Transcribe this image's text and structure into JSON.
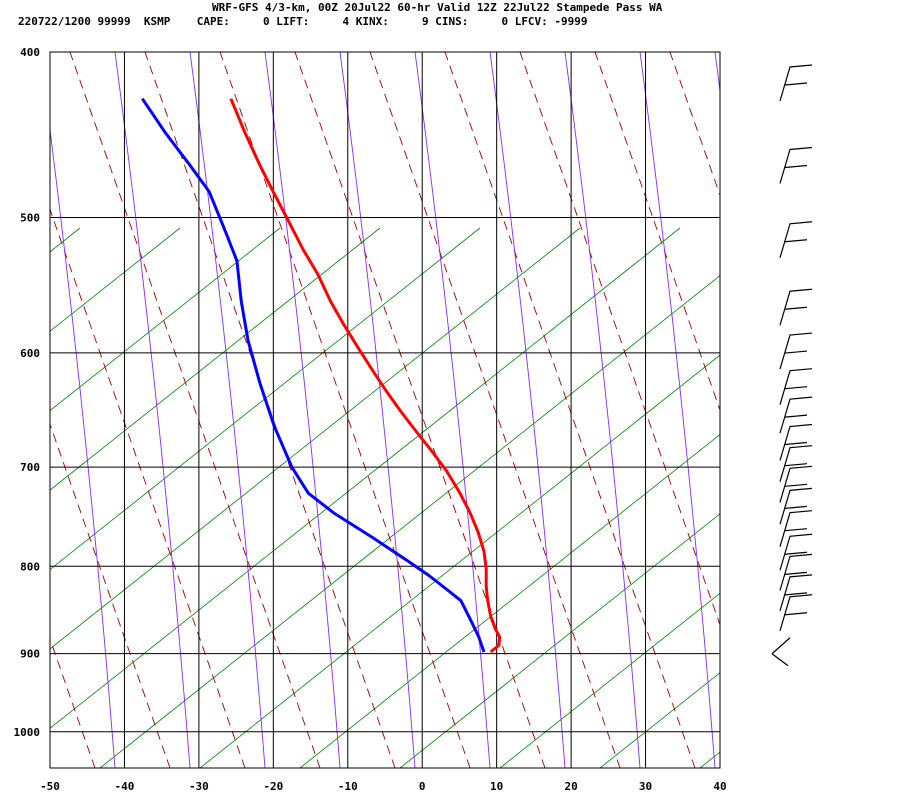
{
  "header": {
    "line1": "WRF-GFS 4/3-km, 00Z 20Jul22 60-hr Valid 12Z 22Jul22 Stampede Pass WA",
    "line2": "220722/1200 99999  KSMP    CAPE:     0 LIFT:     4 KINX:     9 CINS:     0 LFCV: -9999"
  },
  "chart_data": {
    "type": "line",
    "title": "",
    "xlabel": "",
    "ylabel": "",
    "x_ticks": [
      -50,
      -40,
      -30,
      -20,
      -10,
      0,
      10,
      20,
      30,
      40
    ],
    "x_tick_labels": [
      "-50",
      "-40",
      "-30",
      "-20",
      "-10",
      "0",
      "10",
      "20",
      "30",
      "40"
    ],
    "y_ticks": [
      400,
      500,
      600,
      700,
      800,
      900,
      1000
    ],
    "y_tick_labels": [
      "400",
      "500",
      "600",
      "700",
      "800",
      "900",
      "1000"
    ],
    "xlim": [
      -50,
      40
    ],
    "ylim": [
      400,
      1050
    ],
    "y_scale": "log-pressure",
    "grid": true,
    "series": [
      {
        "color": "#ff0000",
        "points": [
          [
            -25.7,
            426
          ],
          [
            -23.8,
            446
          ],
          [
            -21.8,
            466
          ],
          [
            -20.0,
            483
          ],
          [
            -18.0,
            502
          ],
          [
            -16.0,
            522
          ],
          [
            -14.0,
            540
          ],
          [
            -12.3,
            560
          ],
          [
            -10.5,
            578
          ],
          [
            -8.6,
            596
          ],
          [
            -6.7,
            614
          ],
          [
            -4.8,
            632
          ],
          [
            -2.8,
            650
          ],
          [
            -0.7,
            668
          ],
          [
            1.4,
            686
          ],
          [
            3.3,
            704
          ],
          [
            5.0,
            724
          ],
          [
            6.4,
            744
          ],
          [
            7.5,
            764
          ],
          [
            8.3,
            784
          ],
          [
            8.6,
            803
          ],
          [
            8.6,
            822
          ],
          [
            8.8,
            838
          ],
          [
            9.2,
            856
          ],
          [
            9.8,
            870
          ],
          [
            10.4,
            880
          ],
          [
            10.3,
            890
          ],
          [
            9.6,
            895
          ],
          [
            9.2,
            898
          ]
        ]
      },
      {
        "color": "#0000ff",
        "points": [
          [
            -37.6,
            426
          ],
          [
            -34.5,
            446
          ],
          [
            -31.2,
            466
          ],
          [
            -28.6,
            483
          ],
          [
            -26.4,
            510
          ],
          [
            -24.9,
            530
          ],
          [
            -24.3,
            560
          ],
          [
            -23.4,
            590
          ],
          [
            -21.8,
            625
          ],
          [
            -19.9,
            662
          ],
          [
            -17.5,
            700
          ],
          [
            -15.3,
            725
          ],
          [
            -11.8,
            745
          ],
          [
            -6.6,
            770
          ],
          [
            -1.8,
            795
          ],
          [
            0.9,
            810
          ],
          [
            3.4,
            826
          ],
          [
            5.2,
            838
          ],
          [
            6.5,
            860
          ],
          [
            7.6,
            880
          ],
          [
            8.3,
            898
          ]
        ]
      }
    ],
    "background_lines": {
      "dry_adiabat_color": "#990000",
      "moist_adiabat_color": "#8a2be2",
      "isotherm_skew_color": "#008000",
      "grid_color": "#000000"
    },
    "wind_barbs": {
      "color": "#000000",
      "levels_hpa": [
        425,
        475,
        525,
        575,
        610,
        640,
        665,
        690,
        710,
        730,
        752,
        775,
        800,
        822,
        845,
        868,
        905
      ]
    }
  }
}
